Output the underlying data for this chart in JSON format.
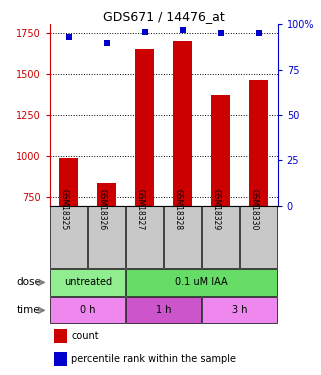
{
  "title": "GDS671 / 14476_at",
  "samples": [
    "GSM18325",
    "GSM18326",
    "GSM18327",
    "GSM18328",
    "GSM18329",
    "GSM18330"
  ],
  "bar_values": [
    990,
    840,
    1650,
    1700,
    1370,
    1460
  ],
  "dot_values": [
    93,
    90,
    96,
    97,
    95,
    95
  ],
  "bar_color": "#cc0000",
  "dot_color": "#0000cc",
  "ylim_left": [
    700,
    1800
  ],
  "ylim_right": [
    0,
    100
  ],
  "yticks_left": [
    750,
    1000,
    1250,
    1500,
    1750
  ],
  "yticks_right": [
    0,
    25,
    50,
    75,
    100
  ],
  "ytick_labels_left": [
    "750",
    "1000",
    "1250",
    "1500",
    "1750"
  ],
  "ytick_labels_right": [
    "0",
    "25",
    "50",
    "75",
    "100%"
  ],
  "dose_labels": [
    {
      "text": "untreated",
      "start": 0,
      "end": 2,
      "color": "#90ee90"
    },
    {
      "text": "0.1 uM IAA",
      "start": 2,
      "end": 6,
      "color": "#66dd66"
    }
  ],
  "time_labels": [
    {
      "text": "0 h",
      "start": 0,
      "end": 2,
      "color": "#ee88ee"
    },
    {
      "text": "1 h",
      "start": 2,
      "end": 4,
      "color": "#cc55cc"
    },
    {
      "text": "3 h",
      "start": 4,
      "end": 6,
      "color": "#ee88ee"
    }
  ],
  "dose_row_label": "dose",
  "time_row_label": "time",
  "legend_count_label": "count",
  "legend_pct_label": "percentile rank within the sample",
  "tick_label_color_left": "#cc0000",
  "tick_label_color_right": "#0000cc",
  "sample_label_bg": "#c8c8c8",
  "bar_width": 0.5
}
